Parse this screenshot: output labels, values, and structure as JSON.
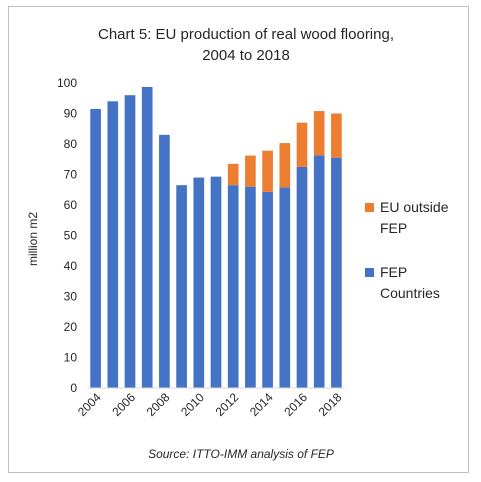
{
  "chart_data": {
    "type": "bar",
    "stacked": true,
    "title_lines": [
      "Chart 5: EU production of real wood flooring,",
      "2004 to 2018"
    ],
    "ylabel": "million m2",
    "xlabel": "",
    "ylim": [
      0,
      100
    ],
    "yticks": [
      0,
      10,
      20,
      30,
      40,
      50,
      60,
      70,
      80,
      90,
      100
    ],
    "categories": [
      "2004",
      "2005",
      "2006",
      "2007",
      "2008",
      "2009",
      "2010",
      "2011",
      "2012",
      "2013",
      "2014",
      "2015",
      "2016",
      "2017",
      "2018"
    ],
    "xtick_labels": [
      "2004",
      "",
      "2006",
      "",
      "2008",
      "",
      "2010",
      "",
      "2012",
      "",
      "2014",
      "",
      "2016",
      "",
      "2018"
    ],
    "series": [
      {
        "name": "FEP Countries",
        "legend_lines": [
          "FEP",
          "Countries"
        ],
        "color": "#4472c4",
        "values": [
          91.5,
          94,
          96,
          98.7,
          83,
          66.5,
          69,
          69.3,
          66.5,
          66,
          64.3,
          65.8,
          72.5,
          76.3,
          75.5
        ]
      },
      {
        "name": "EU outside FEP",
        "legend_lines": [
          "EU outside",
          "FEP"
        ],
        "color": "#ed7d31",
        "values": [
          0,
          0,
          0,
          0,
          0,
          0,
          0,
          0,
          7,
          10.2,
          13.5,
          14.5,
          14.5,
          14.5,
          14.5
        ]
      }
    ],
    "legend_position": "right",
    "grid": false,
    "source": "Source: ITTO-IMM analysis of FEP"
  }
}
